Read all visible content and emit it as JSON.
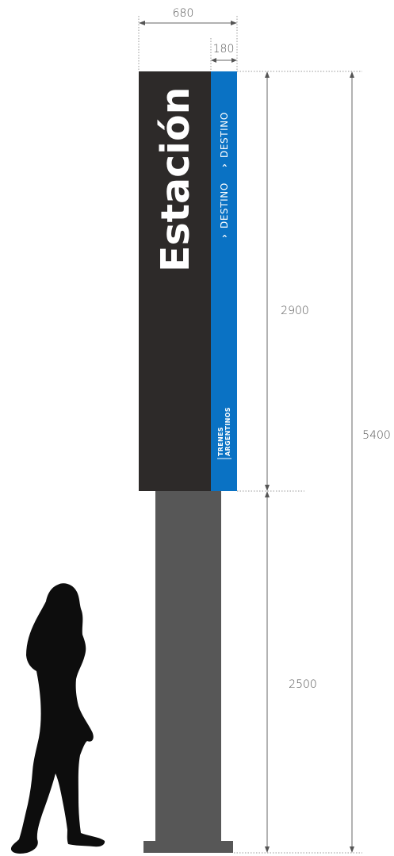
{
  "dimensions": {
    "total_width": "680",
    "band_width": "180",
    "panel_height": "2900",
    "total_height": "5400",
    "post_height": "2500"
  },
  "sign": {
    "title": "Estación",
    "destination_1": "DESTINO",
    "destination_2": "DESTINO",
    "chevron": "›",
    "brand_line_1": "TRENES",
    "brand_line_2": "ARGENTINOS"
  },
  "colors": {
    "panel": "#2d2a29",
    "band": "#0a72c4",
    "post": "#575757",
    "base": "#575757",
    "silhouette": "#0d0d0d"
  },
  "figure": {
    "icon": "person-silhouette-icon"
  }
}
